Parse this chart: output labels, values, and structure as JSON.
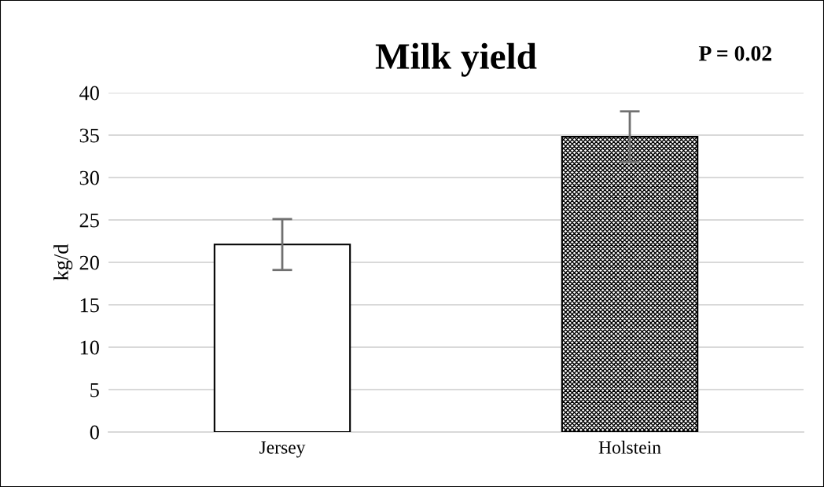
{
  "chart_data": {
    "type": "bar",
    "title": "Milk yield",
    "ylabel": "kg/d",
    "categories": [
      "Jersey",
      "Holstein"
    ],
    "values": [
      22.1,
      34.8
    ],
    "errors": [
      3,
      3
    ],
    "colors": [
      "#ffffff",
      "#000000"
    ],
    "ylim": [
      0,
      40
    ],
    "yticks": [
      0,
      5,
      10,
      15,
      20,
      25,
      30,
      35,
      40
    ],
    "grid": "y",
    "annotations": [
      "P = 0.02"
    ]
  }
}
